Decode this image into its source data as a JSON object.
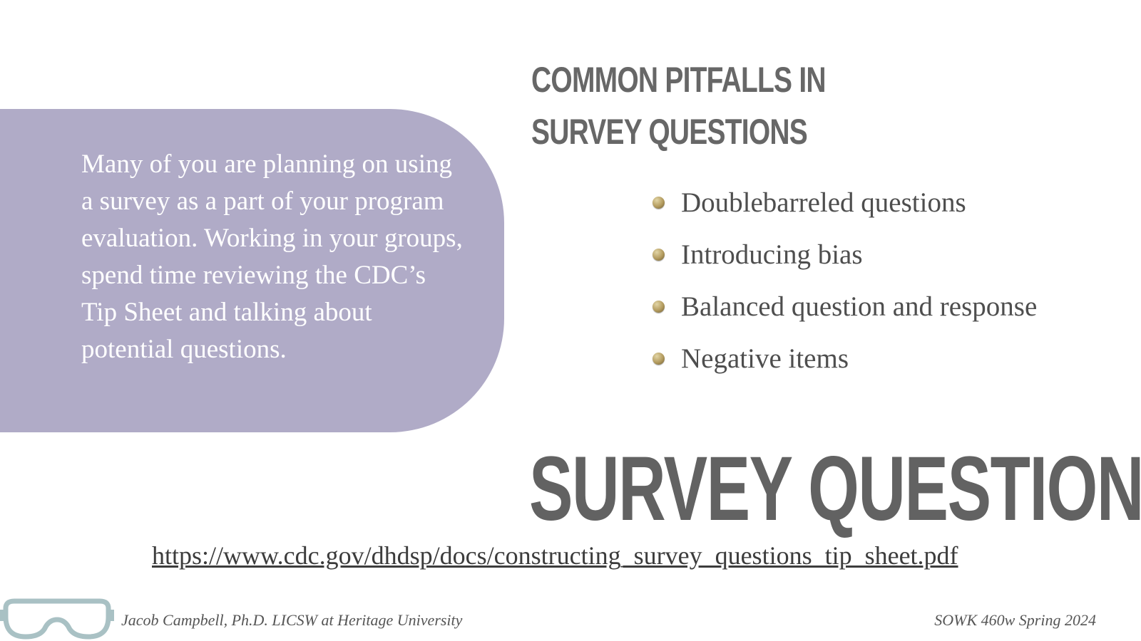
{
  "slide": {
    "heading_line1": "COMMON PITFALLS IN",
    "heading_line2": "SURVEY QUESTIONS",
    "callout_text": "Many of you are planning on using a survey as a part of your program evaluation. Working in your groups, spend time reviewing the CDC’s Tip Sheet and talking about potential questions.",
    "bullets": [
      "Doublebarreled questions",
      "Introducing bias",
      "Balanced question and response",
      "Negative items"
    ],
    "big_title": "SURVEY QUESTIONS",
    "link": "https://www.cdc.gov/dhdsp/docs/constructing_survey_questions_tip_sheet.pdf"
  },
  "footer": {
    "author": "Jacob Campbell, Ph.D. LICSW at Heritage University",
    "course": "SOWK 460w Spring 2024",
    "logo_icon": "goggles-icon"
  },
  "colors": {
    "callout_bg": "#b0abc7",
    "heading": "#676767",
    "logo": "#a9c1c4"
  }
}
